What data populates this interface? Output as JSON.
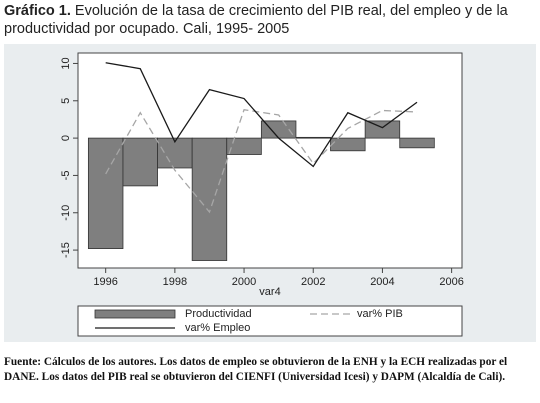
{
  "title_label": "Gráfico 1.",
  "title": "Evolución de la tasa de crecimiento del PIB real, del empleo y de la productividad por ocupado. Cali, 1995- 2005",
  "note_label": "Fuente:",
  "note": "Cálculos de los autores. Los datos de empleo se obtuvieron de la ENH y la ECH realizadas por el DANE. Los datos del PIB real se obtuvieron del CIENFI (Universidad Icesi) y DAPM (Alcaldía de Cali).",
  "chart_data": {
    "type": "bar",
    "x_label": "var4",
    "x": [
      1996,
      1997,
      1998,
      1999,
      2000,
      2001,
      2002,
      2003,
      2004,
      2005
    ],
    "series": [
      {
        "name": "Productividad",
        "type": "bar",
        "color": "#7f7f7f",
        "values": [
          -14.8,
          -6.4,
          -4.0,
          -16.4,
          -2.2,
          2.3,
          0.1,
          -1.7,
          2.3,
          -1.3
        ]
      },
      {
        "name": "var% PIB",
        "type": "line",
        "dashed": true,
        "color": "#a6a6a6",
        "values": [
          -4.8,
          3.4,
          -4.3,
          -9.9,
          3.8,
          3.1,
          -3.4,
          1.3,
          3.7,
          3.5
        ]
      },
      {
        "name": "var% Empleo",
        "type": "line",
        "color": "#1a1a1a",
        "values": [
          10.1,
          9.3,
          -0.5,
          6.5,
          5.3,
          0.0,
          -3.8,
          3.4,
          1.4,
          4.8
        ]
      }
    ],
    "xlim": [
      1995.2,
      2006.3
    ],
    "xticks": [
      1996,
      1998,
      2000,
      2002,
      2004,
      2006
    ],
    "ylim": [
      -17.4,
      11.4
    ],
    "yticks": [
      10,
      5,
      0,
      -5,
      -10,
      -15
    ]
  }
}
